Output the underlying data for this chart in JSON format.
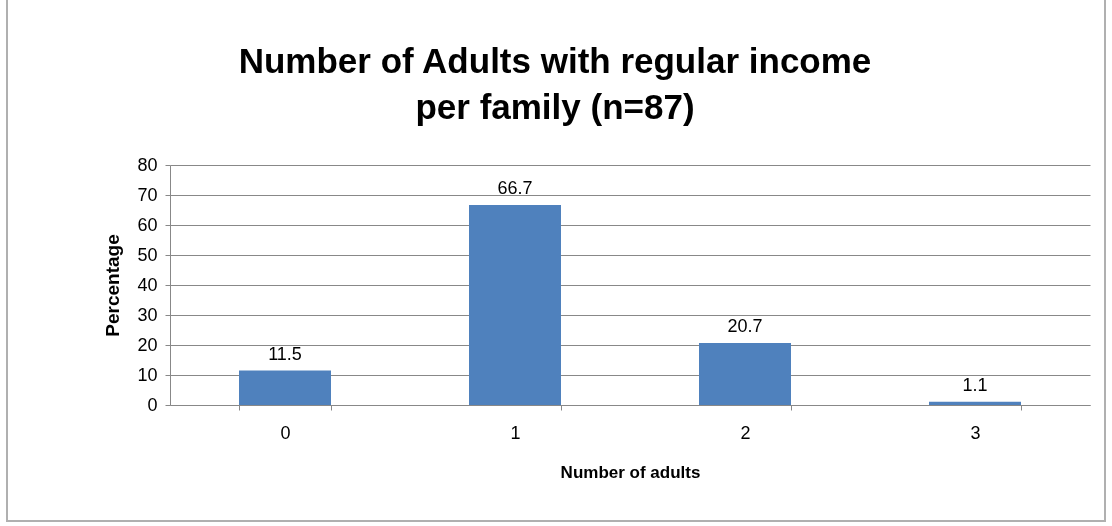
{
  "chart_data": {
    "type": "bar",
    "title": "Number of Adults with regular income per family (n=87)",
    "xlabel": "Number of adults",
    "ylabel": "Percentage",
    "categories": [
      "0",
      "1",
      "2",
      "3"
    ],
    "values": [
      11.5,
      66.7,
      20.7,
      1.1
    ],
    "color": "#4f81bd",
    "ylim": [
      0,
      80
    ],
    "yticks": [
      0,
      10,
      20,
      30,
      40,
      50,
      60,
      70,
      80
    ],
    "grid": "y",
    "data_labels": true
  }
}
